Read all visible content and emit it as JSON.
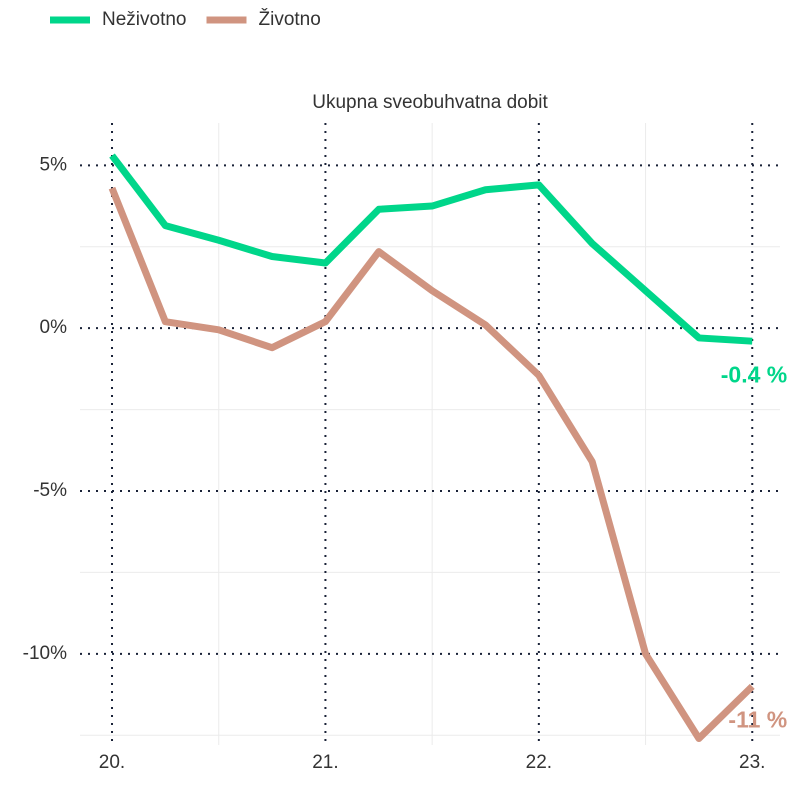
{
  "chart_data": {
    "type": "line",
    "title": "Ukupna sveobuhvatna dobit",
    "x": [
      20,
      20.25,
      20.5,
      20.75,
      21,
      21.25,
      21.5,
      21.75,
      22,
      22.25,
      22.5,
      22.75,
      23
    ],
    "series": [
      {
        "name": "Neživotno",
        "color": "#00d68a",
        "values": [
          5.3,
          3.15,
          2.7,
          2.2,
          2.0,
          3.65,
          3.75,
          4.25,
          4.4,
          2.6,
          1.15,
          -0.3,
          -0.4
        ],
        "end_label": "-0.4 %"
      },
      {
        "name": "Životno",
        "color": "#d09480",
        "values": [
          4.3,
          0.2,
          -0.05,
          -0.6,
          0.2,
          2.35,
          1.15,
          0.1,
          -1.45,
          -4.1,
          -10.0,
          -12.6,
          -11.0
        ],
        "end_label": "-11 %"
      }
    ],
    "xlim": [
      19.85,
      23.13
    ],
    "xticks": [
      {
        "value": 20,
        "label": "20."
      },
      {
        "value": 21,
        "label": "21."
      },
      {
        "value": 22,
        "label": "22."
      },
      {
        "value": 23,
        "label": "23."
      }
    ],
    "xminorticks": [
      20.5,
      21.5,
      22.5
    ],
    "ylim": [
      -12.8,
      6.3
    ],
    "yticks": [
      {
        "value": 5,
        "label": "5%"
      },
      {
        "value": 0,
        "label": "0%"
      },
      {
        "value": -5,
        "label": "-5%"
      },
      {
        "value": -10,
        "label": "-10%"
      }
    ],
    "yminorticks": [
      2.5,
      -2.5,
      -7.5,
      -12.5
    ],
    "grid": true,
    "legend": "top-left"
  }
}
